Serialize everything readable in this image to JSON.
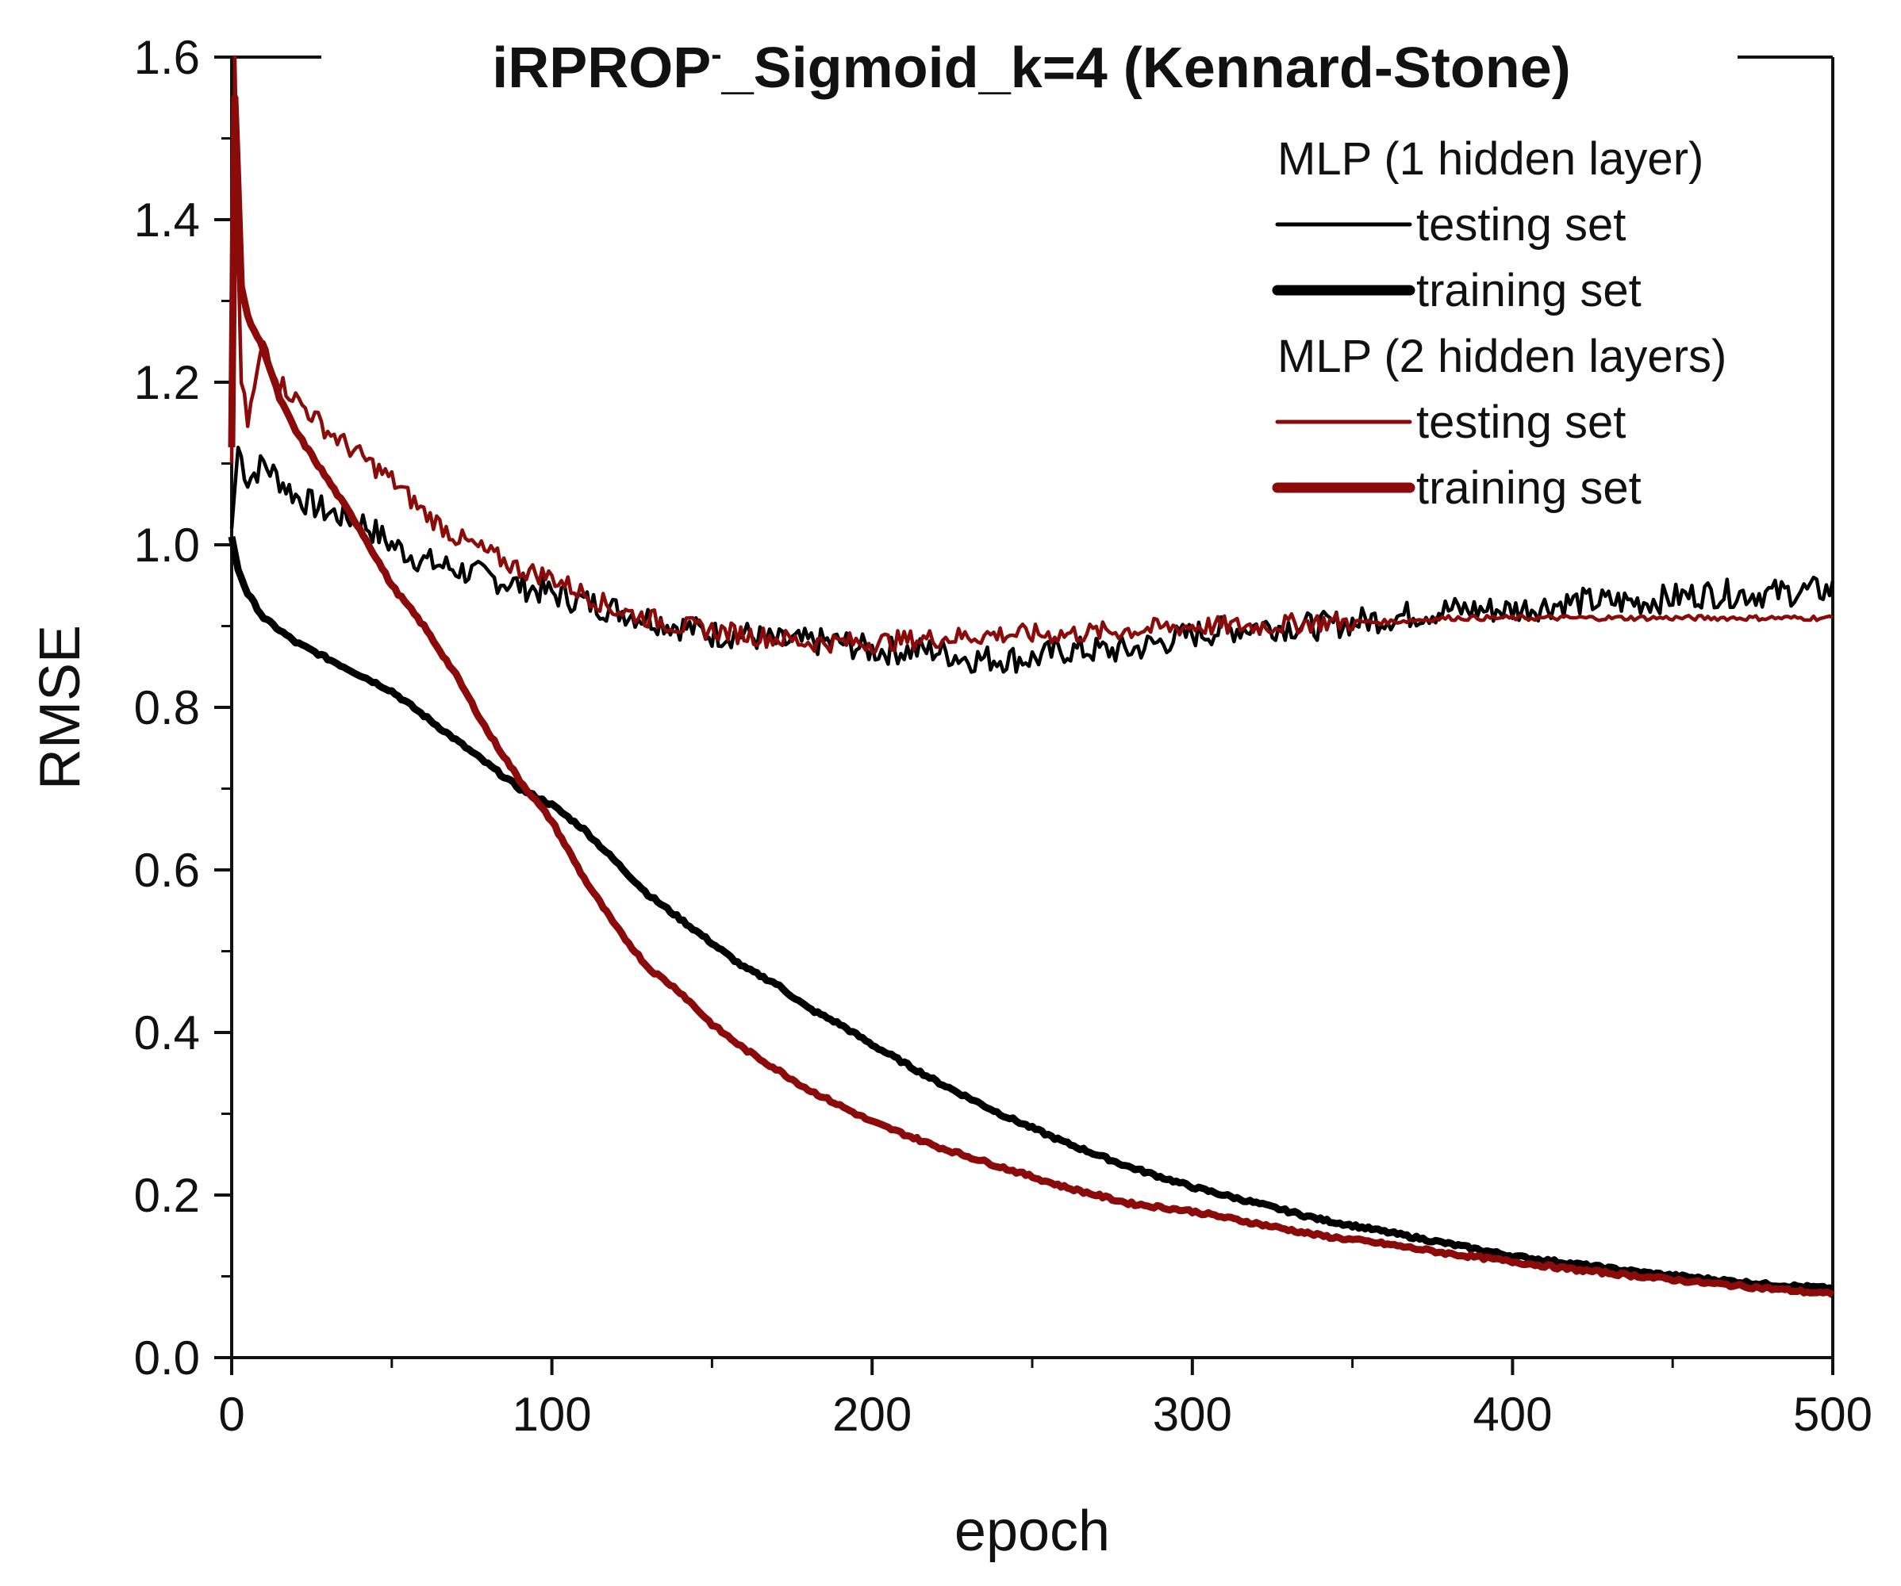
{
  "chart_data": {
    "type": "line",
    "title": "iRPROP",
    "title_superscript": "-",
    "title_rest": "_Sigmoid_k=4 (Kennard-Stone)",
    "xlabel": "epoch",
    "ylabel": "RMSE",
    "xlim": [
      0,
      500
    ],
    "ylim": [
      0.0,
      1.6
    ],
    "xticks": [
      0,
      100,
      200,
      300,
      400,
      500
    ],
    "xtick_labels": [
      "0",
      "100",
      "200",
      "300",
      "400",
      "500"
    ],
    "yticks": [
      0.0,
      0.2,
      0.4,
      0.6,
      0.8,
      1.0,
      1.2,
      1.4,
      1.6
    ],
    "ytick_labels": [
      "0.0",
      "0.2",
      "0.4",
      "0.6",
      "0.8",
      "1.0",
      "1.2",
      "1.4",
      "1.6"
    ],
    "legend": {
      "placement": "top-right",
      "groups": [
        {
          "title": "MLP (1 hidden layer)",
          "entries": [
            "testing set",
            "training set"
          ]
        },
        {
          "title": "MLP (2 hidden layers)",
          "entries": [
            "testing set",
            "training set"
          ]
        }
      ]
    },
    "series": [
      {
        "name": "MLP (1 hidden layer) testing set",
        "color": "#000000",
        "weight": "thin",
        "x": [
          0,
          2,
          5,
          10,
          20,
          30,
          40,
          50,
          60,
          70,
          80,
          90,
          100,
          110,
          120,
          130,
          140,
          150,
          160,
          170,
          180,
          190,
          200,
          210,
          220,
          230,
          240,
          250,
          260,
          270,
          280,
          290,
          300,
          320,
          340,
          360,
          380,
          400,
          420,
          440,
          460,
          480,
          500
        ],
        "y": [
          1.02,
          1.12,
          1.08,
          1.1,
          1.06,
          1.04,
          1.03,
          1.0,
          0.98,
          0.97,
          0.96,
          0.95,
          0.94,
          0.93,
          0.92,
          0.91,
          0.9,
          0.89,
          0.89,
          0.88,
          0.88,
          0.88,
          0.87,
          0.87,
          0.87,
          0.86,
          0.86,
          0.86,
          0.87,
          0.87,
          0.87,
          0.88,
          0.89,
          0.9,
          0.9,
          0.91,
          0.92,
          0.92,
          0.93,
          0.93,
          0.94,
          0.94,
          0.945
        ]
      },
      {
        "name": "MLP (1 hidden layer) training set",
        "color": "#000000",
        "weight": "thick",
        "x": [
          0,
          2,
          5,
          10,
          20,
          30,
          40,
          50,
          60,
          70,
          80,
          90,
          100,
          110,
          120,
          130,
          140,
          150,
          160,
          170,
          180,
          190,
          200,
          220,
          240,
          260,
          280,
          300,
          320,
          340,
          360,
          380,
          400,
          420,
          440,
          460,
          480,
          500
        ],
        "y": [
          1.01,
          0.97,
          0.94,
          0.91,
          0.88,
          0.86,
          0.84,
          0.82,
          0.79,
          0.76,
          0.73,
          0.7,
          0.68,
          0.65,
          0.61,
          0.57,
          0.54,
          0.51,
          0.48,
          0.46,
          0.43,
          0.41,
          0.385,
          0.34,
          0.3,
          0.265,
          0.235,
          0.21,
          0.19,
          0.17,
          0.155,
          0.14,
          0.125,
          0.115,
          0.105,
          0.097,
          0.09,
          0.085
        ]
      },
      {
        "name": "MLP (2 hidden layers) testing set",
        "color": "#8b0a0a",
        "weight": "thin",
        "x": [
          0,
          1,
          2,
          3,
          5,
          10,
          15,
          20,
          30,
          40,
          50,
          60,
          70,
          80,
          90,
          100,
          110,
          120,
          130,
          140,
          150,
          160,
          170,
          180,
          190,
          200,
          220,
          240,
          260,
          280,
          300,
          320,
          340,
          360,
          380,
          400,
          420,
          440,
          460,
          480,
          500
        ],
        "y": [
          1.1,
          1.6,
          1.35,
          1.2,
          1.15,
          1.25,
          1.2,
          1.18,
          1.14,
          1.11,
          1.08,
          1.04,
          1.01,
          0.99,
          0.97,
          0.96,
          0.94,
          0.92,
          0.91,
          0.9,
          0.895,
          0.89,
          0.885,
          0.88,
          0.88,
          0.88,
          0.885,
          0.89,
          0.89,
          0.895,
          0.9,
          0.9,
          0.905,
          0.905,
          0.91,
          0.91,
          0.91,
          0.91,
          0.91,
          0.91,
          0.91
        ]
      },
      {
        "name": "MLP (2 hidden layers) training set",
        "color": "#8b0a0a",
        "weight": "thick",
        "x": [
          0,
          1,
          3,
          5,
          10,
          15,
          20,
          30,
          40,
          50,
          60,
          70,
          80,
          90,
          100,
          110,
          120,
          130,
          140,
          150,
          160,
          170,
          180,
          190,
          200,
          220,
          240,
          260,
          280,
          300,
          320,
          340,
          360,
          380,
          400,
          420,
          440,
          460,
          480,
          500
        ],
        "y": [
          1.12,
          1.55,
          1.32,
          1.28,
          1.24,
          1.18,
          1.14,
          1.08,
          1.02,
          0.95,
          0.9,
          0.84,
          0.77,
          0.71,
          0.66,
          0.59,
          0.53,
          0.48,
          0.45,
          0.41,
          0.38,
          0.355,
          0.33,
          0.31,
          0.29,
          0.26,
          0.235,
          0.21,
          0.19,
          0.18,
          0.165,
          0.15,
          0.14,
          0.128,
          0.118,
          0.108,
          0.1,
          0.092,
          0.085,
          0.078
        ]
      }
    ]
  }
}
